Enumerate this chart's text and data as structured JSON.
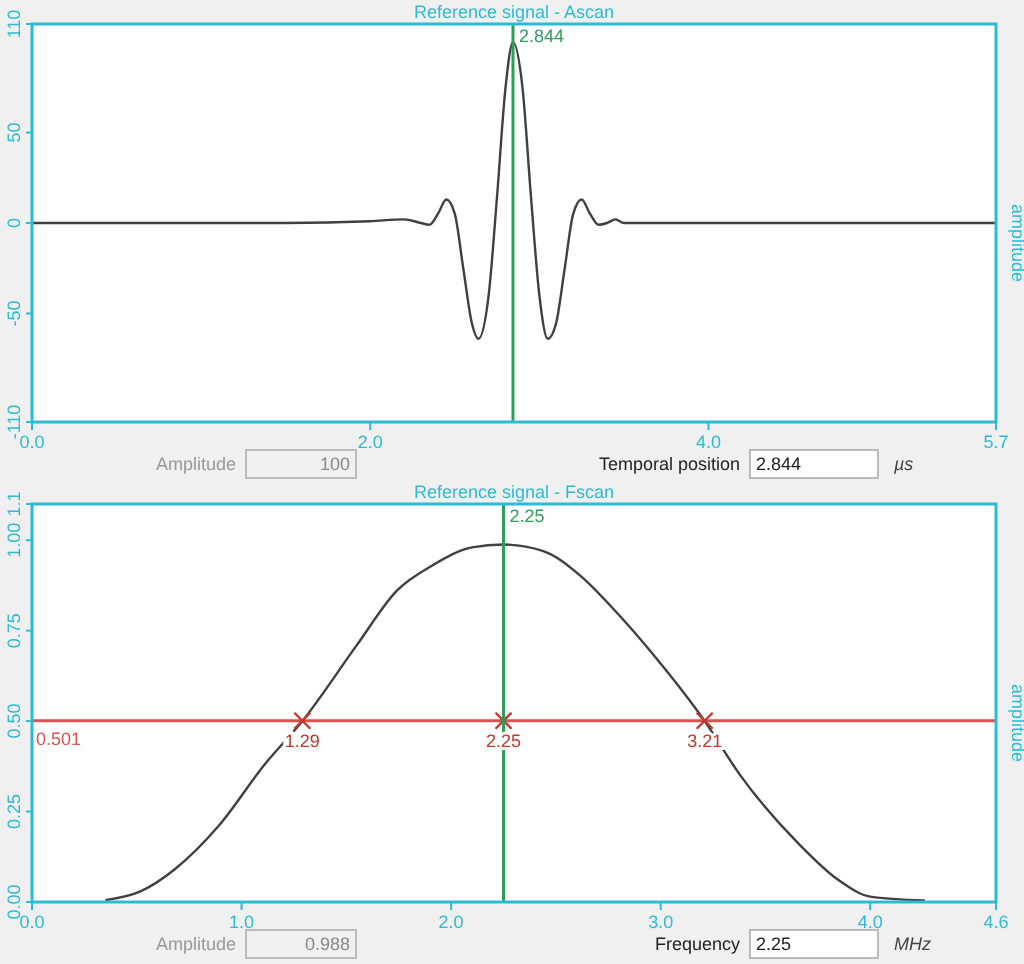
{
  "chart_data": [
    {
      "type": "line",
      "title": "Reference signal - Ascan",
      "y2label": "amplitude",
      "xlim": [
        0,
        5.7
      ],
      "xticks": [
        {
          "value": 0,
          "label": "0.0"
        },
        {
          "value": 2,
          "label": "2.0"
        },
        {
          "value": 4,
          "label": "4.0"
        },
        {
          "value": 5.7,
          "label": "5.7"
        }
      ],
      "ylim": [
        -110,
        110
      ],
      "yticks": [
        -110,
        -50,
        0,
        50,
        110
      ],
      "grid": false,
      "series": [
        {
          "color": "#404040",
          "x": [
            0,
            0.5,
            1.0,
            1.5,
            2.0,
            2.2,
            2.3,
            2.35,
            2.4,
            2.45,
            2.5,
            2.55,
            2.6,
            2.64,
            2.7,
            2.75,
            2.8,
            2.844,
            2.9,
            2.95,
            3.0,
            3.05,
            3.1,
            3.15,
            3.2,
            3.25,
            3.3,
            3.35,
            3.4,
            3.45,
            3.5,
            4.0,
            4.5,
            5.0,
            5.7
          ],
          "values": [
            0,
            0,
            0,
            0,
            1,
            2,
            0,
            -1,
            5,
            13,
            5,
            -25,
            -55,
            -64,
            -40,
            15,
            75,
            100,
            75,
            15,
            -40,
            -64,
            -55,
            -25,
            5,
            13,
            5,
            -1,
            0,
            2,
            0,
            0,
            0,
            0,
            0
          ]
        }
      ],
      "ref_lines": [
        {
          "axis": "x",
          "value": 2.844,
          "label": "2.844",
          "color": "#2e9e5a"
        }
      ],
      "annotations": [
        "Amplitude",
        "100",
        "Temporal position",
        "2.844",
        "µs"
      ]
    },
    {
      "type": "line",
      "title": "Reference signal - Fscan",
      "y2label": "amplitude",
      "xlim": [
        0,
        4.6
      ],
      "xticks": [
        {
          "value": 0,
          "label": "0.0"
        },
        {
          "value": 1,
          "label": "1.0"
        },
        {
          "value": 2,
          "label": "2.0"
        },
        {
          "value": 3,
          "label": "3.0"
        },
        {
          "value": 4,
          "label": "4.0"
        },
        {
          "value": 4.6,
          "label": "4.6"
        }
      ],
      "ylim": [
        0,
        1.1
      ],
      "yticks": [
        {
          "value": 0,
          "label": "0.00"
        },
        {
          "value": 0.25,
          "label": "0.25"
        },
        {
          "value": 0.5,
          "label": "0.50"
        },
        {
          "value": 0.75,
          "label": "0.75"
        },
        {
          "value": 1,
          "label": "1.00"
        },
        {
          "value": 1.1,
          "label": "1.1"
        }
      ],
      "grid": false,
      "series": [
        {
          "color": "#404040",
          "x": [
            0.35,
            0.52,
            0.68,
            0.89,
            1.11,
            1.29,
            1.55,
            1.74,
            1.91,
            2.1,
            2.25,
            2.44,
            2.62,
            2.79,
            2.97,
            3.21,
            3.38,
            3.66,
            3.85,
            4.0,
            4.26
          ],
          "values": [
            0.005,
            0.03,
            0.09,
            0.21,
            0.38,
            0.5,
            0.71,
            0.86,
            0.93,
            0.98,
            0.988,
            0.97,
            0.9,
            0.8,
            0.68,
            0.5,
            0.35,
            0.16,
            0.06,
            0.015,
            0.004
          ]
        },
        {
          "type": "scatter",
          "color": "#c0392b",
          "marker": "cross",
          "x": [
            1.29,
            2.25,
            3.21
          ],
          "values": [
            0.501,
            0.501,
            0.501
          ]
        }
      ],
      "ref_lines": [
        {
          "axis": "y",
          "value": 0.501,
          "label": "0.501",
          "color": "#d9534f"
        },
        {
          "axis": "x",
          "value": 2.25,
          "label": "2.25",
          "color": "#2e9e5a"
        }
      ],
      "annotations": [
        "Amplitude",
        "0.988",
        "Frequency",
        "2.25",
        "MHz",
        {
          "text": "1.29",
          "x": 1.29,
          "y": 0.501
        },
        {
          "text": "2.25",
          "x": 2.25,
          "y": 0.501
        },
        {
          "text": "3.21",
          "x": 3.21,
          "y": 0.501
        }
      ]
    }
  ]
}
